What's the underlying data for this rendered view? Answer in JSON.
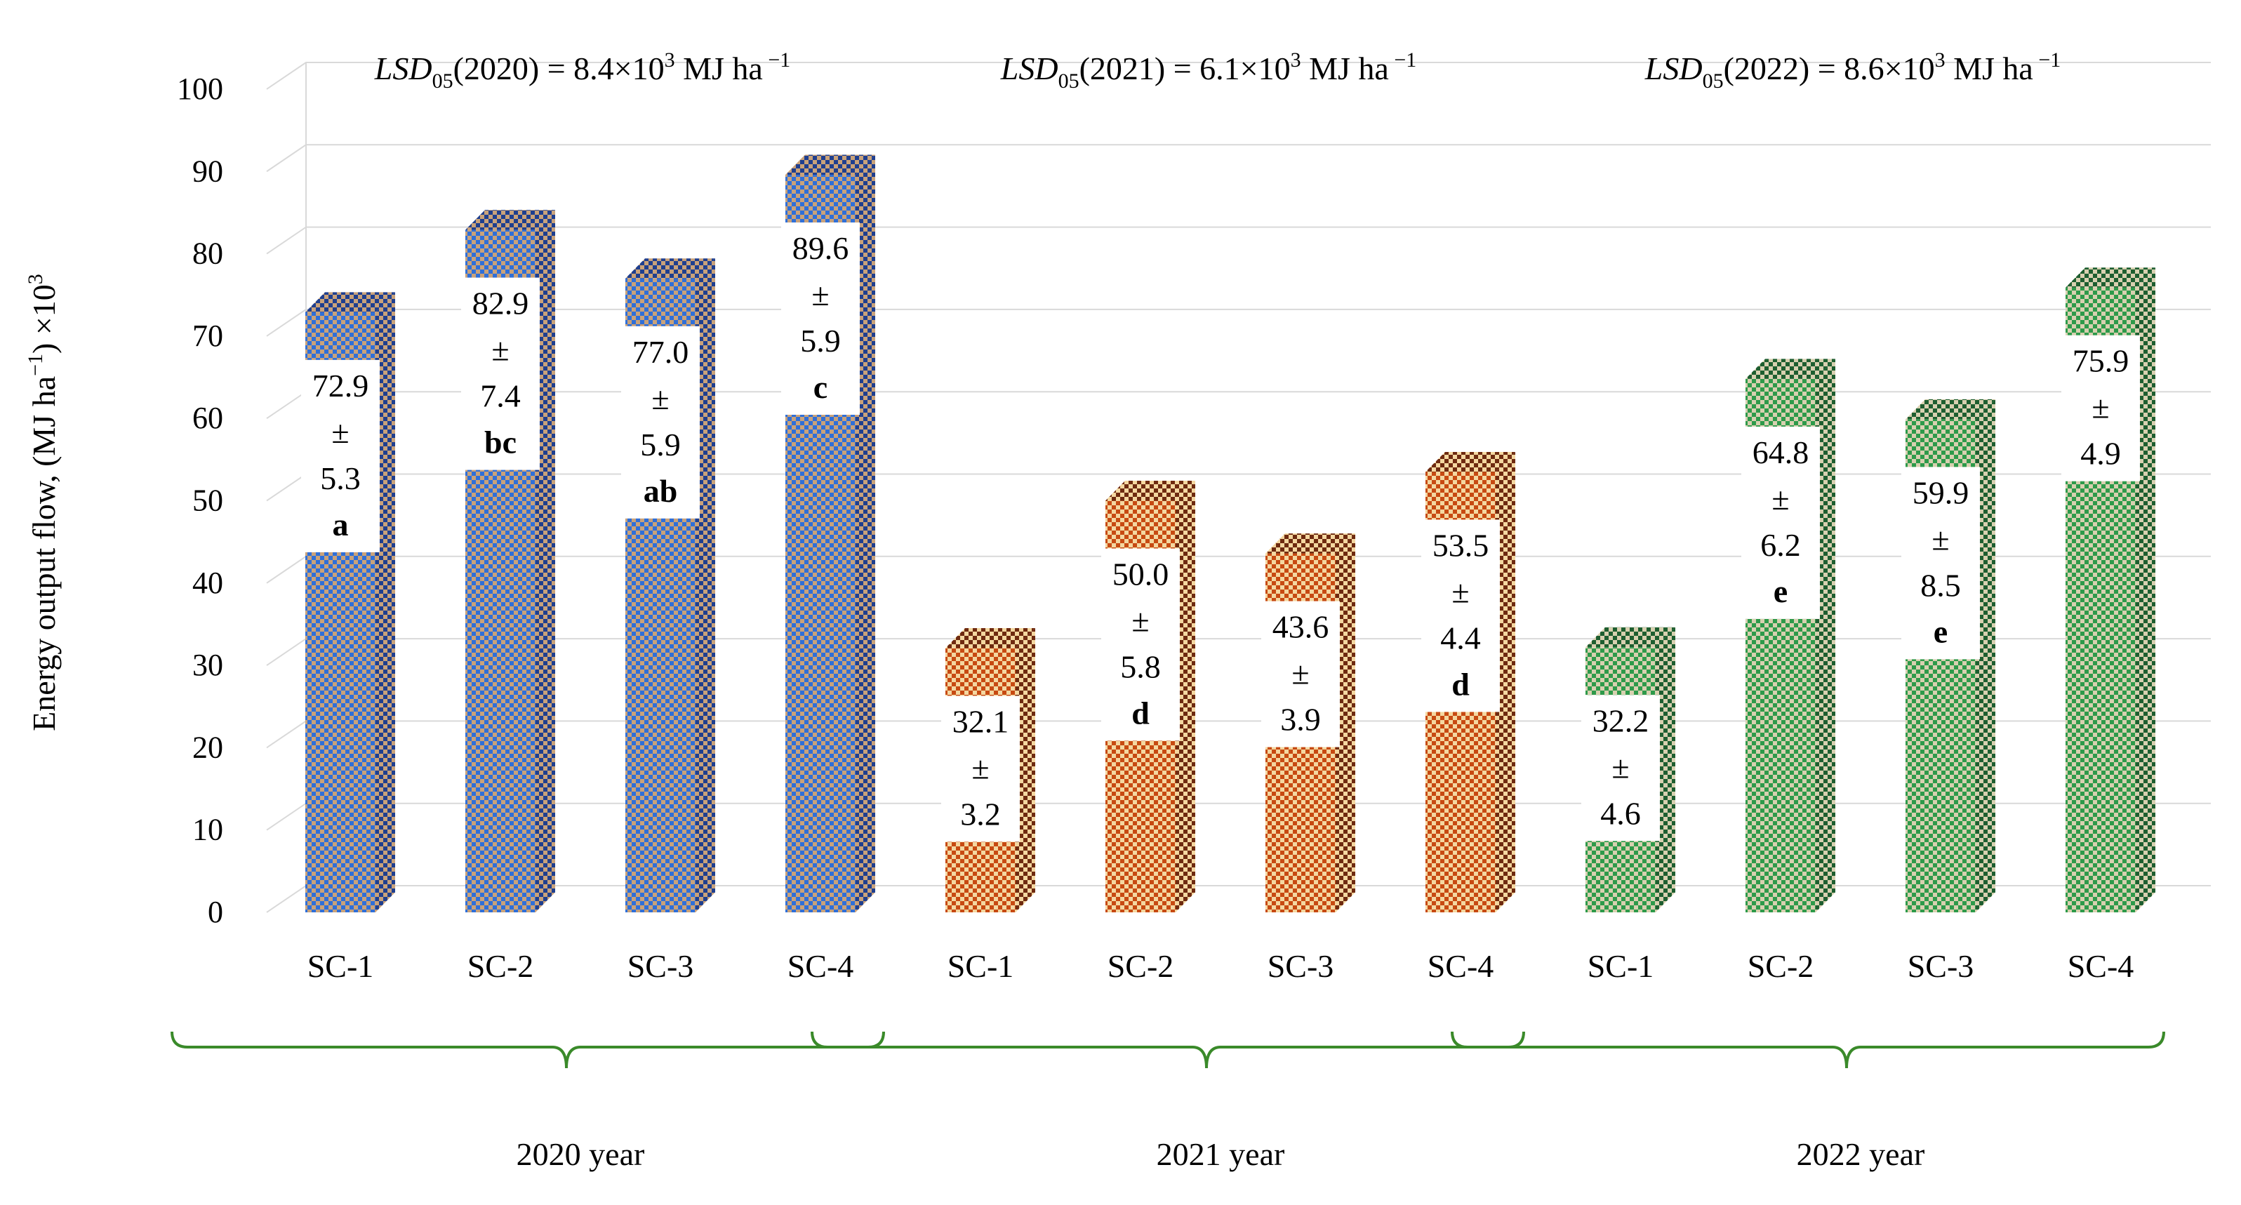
{
  "chart_data": {
    "type": "bar",
    "ylabel_main": "Energy output flow,  (MJ ha",
    "ylabel_unit_sup": "−1",
    "ylabel_tail": ") ×10",
    "ylabel_tail_sup": "3",
    "ylim": [
      0,
      100
    ],
    "yticks": [
      "0",
      "10",
      "20",
      "30",
      "40",
      "50",
      "60",
      "70",
      "80",
      "90",
      "100"
    ],
    "ytick_values": [
      0,
      10,
      20,
      30,
      40,
      50,
      60,
      70,
      80,
      90,
      100
    ],
    "grid": true,
    "groups": [
      {
        "name": "2020 year",
        "lsd_prefix": "LSD",
        "lsd_sub": "05",
        "lsd_mid": "(2020) = 8.4×10",
        "lsd_sup": "3",
        "lsd_unit": " MJ ha",
        "lsd_unit_sup": " −1",
        "front_color": "#2f6fd8",
        "side_color": "#1f3f8f",
        "check_color": "#c9a27a",
        "bars": [
          {
            "category": "SC-1",
            "value": 72.9,
            "mean": "72.9",
            "pm": "±",
            "sd": "5.3",
            "letter": "a"
          },
          {
            "category": "SC-2",
            "value": 82.9,
            "mean": "82.9",
            "pm": "±",
            "sd": "7.4",
            "letter": "bc"
          },
          {
            "category": "SC-3",
            "value": 77.0,
            "mean": "77.0",
            "pm": "±",
            "sd": "5.9",
            "letter": "ab"
          },
          {
            "category": "SC-4",
            "value": 89.6,
            "mean": "89.6",
            "pm": "±",
            "sd": "5.9",
            "letter": "c"
          }
        ]
      },
      {
        "name": "2021 year",
        "lsd_prefix": "LSD",
        "lsd_sub": "05",
        "lsd_mid": "(2021) = 6.1×10",
        "lsd_sup": "3",
        "lsd_unit": " MJ ha",
        "lsd_unit_sup": " −1",
        "front_color": "#c74a12",
        "side_color": "#6e2a10",
        "check_color": "#f4d7a0",
        "bars": [
          {
            "category": "SC-1",
            "value": 32.1,
            "mean": "32.1",
            "pm": "±",
            "sd": "3.2",
            "letter": ""
          },
          {
            "category": "SC-2",
            "value": 50.0,
            "mean": "50.0",
            "pm": "±",
            "sd": "5.8",
            "letter": "d"
          },
          {
            "category": "SC-3",
            "value": 43.6,
            "mean": "43.6",
            "pm": "±",
            "sd": "3.9",
            "letter": ""
          },
          {
            "category": "SC-4",
            "value": 53.5,
            "mean": "53.5",
            "pm": "±",
            "sd": "4.4",
            "letter": "d"
          }
        ]
      },
      {
        "name": "2022 year",
        "lsd_prefix": "LSD",
        "lsd_sub": "05",
        "lsd_mid": "(2022) = 8.6×10",
        "lsd_sup": "3",
        "lsd_unit": " MJ ha",
        "lsd_unit_sup": " −1",
        "front_color": "#2e9a4a",
        "side_color": "#1e5e30",
        "check_color": "#d8d0b0",
        "bars": [
          {
            "category": "SC-1",
            "value": 32.2,
            "mean": "32.2",
            "pm": "±",
            "sd": "4.6",
            "letter": ""
          },
          {
            "category": "SC-2",
            "value": 64.8,
            "mean": "64.8",
            "pm": "±",
            "sd": "6.2",
            "letter": "e"
          },
          {
            "category": "SC-3",
            "value": 59.9,
            "mean": "59.9",
            "pm": "±",
            "sd": "8.5",
            "letter": "e"
          },
          {
            "category": "SC-4",
            "value": 75.9,
            "mean": "75.9",
            "pm": "±",
            "sd": "4.9",
            "letter": ""
          }
        ]
      }
    ],
    "bracket_color": "#3a8a2a",
    "grid_color": "#d9d9d9"
  }
}
